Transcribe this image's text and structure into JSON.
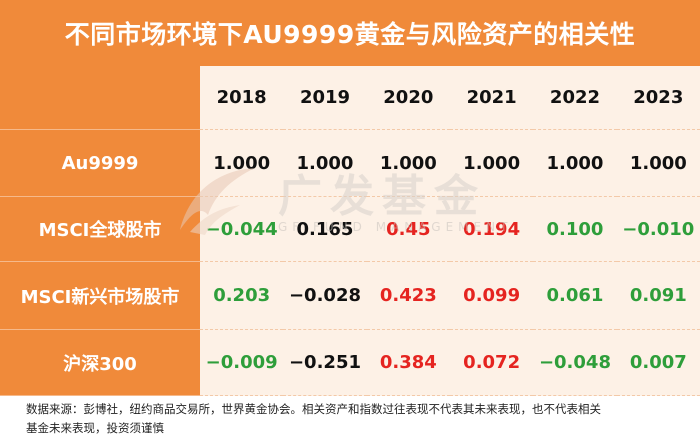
{
  "title": "不同市场环境下AU9999黄金与风险资产的相关性",
  "watermark": {
    "name": "广发基金",
    "sub": "GF FUND MANAGEMENT"
  },
  "table": {
    "years": [
      "2018",
      "2019",
      "2020",
      "2021",
      "2022",
      "2023"
    ],
    "rows": [
      {
        "label": "Au9999",
        "values": [
          "1.000",
          "1.000",
          "1.000",
          "1.000",
          "1.000",
          "1.000"
        ]
      },
      {
        "label": "MSCI全球股市",
        "values": [
          "−0.044",
          "0.165",
          "0.45",
          "0.194",
          "0.100",
          "−0.010"
        ]
      },
      {
        "label": "MSCI新兴市场股市",
        "values": [
          "0.203",
          "−0.028",
          "0.423",
          "0.099",
          "0.061",
          "0.091"
        ]
      },
      {
        "label": "沪深300",
        "values": [
          "−0.009",
          "−0.251",
          "0.384",
          "0.072",
          "−0.048",
          "0.007"
        ]
      }
    ],
    "colors": {
      "green": "#2e9e3a",
      "red": "#e52420",
      "black": "#111111",
      "orange": "#f08a3a",
      "cell_bg": "#fdf1e6"
    }
  },
  "footer": {
    "line1": "数据来源：彭博社，纽约商品交易所，世界黄金协会。相关资产和指数过往表现不代表其未来表现，也不代表相关",
    "line2": "基金未来表现，投资须谨慎"
  }
}
